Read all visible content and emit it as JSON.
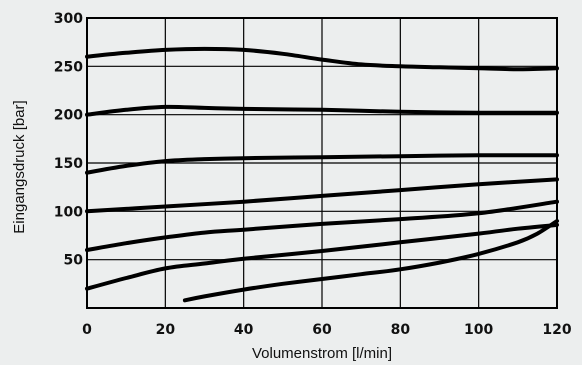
{
  "chart_data": {
    "type": "line",
    "title": "",
    "xlabel": "Volumenstrom [l/min]",
    "ylabel": "Eingangsdruck [bar]",
    "xlim": [
      0,
      120
    ],
    "ylim": [
      0,
      300
    ],
    "xticks": [
      "0",
      "20",
      "40",
      "60",
      "80",
      "100",
      "120"
    ],
    "yticks": [
      "50",
      "100",
      "150",
      "200",
      "250",
      "300"
    ],
    "grid": true,
    "legend": "none",
    "line_color": "#000000",
    "background": "#eceeee",
    "series": [
      {
        "x": [
          0,
          10,
          20,
          30,
          40,
          50,
          60,
          70,
          80,
          90,
          100,
          110,
          120
        ],
        "y": [
          260,
          264,
          267,
          268,
          267,
          263,
          257,
          252,
          250,
          249,
          248,
          247,
          248
        ]
      },
      {
        "x": [
          0,
          10,
          20,
          30,
          40,
          60,
          80,
          100,
          120
        ],
        "y": [
          200,
          205,
          208,
          207,
          206,
          205,
          203,
          202,
          202
        ]
      },
      {
        "x": [
          0,
          10,
          20,
          30,
          40,
          60,
          80,
          100,
          120
        ],
        "y": [
          140,
          147,
          152,
          154,
          155,
          156,
          157,
          158,
          158
        ]
      },
      {
        "x": [
          0,
          20,
          40,
          60,
          80,
          100,
          120
        ],
        "y": [
          100,
          105,
          110,
          116,
          122,
          128,
          133
        ]
      },
      {
        "x": [
          0,
          10,
          20,
          30,
          40,
          60,
          80,
          100,
          120
        ],
        "y": [
          60,
          67,
          73,
          78,
          81,
          87,
          92,
          98,
          110
        ]
      },
      {
        "x": [
          0,
          10,
          20,
          30,
          40,
          60,
          80,
          100,
          110,
          120
        ],
        "y": [
          20,
          31,
          41,
          46,
          51,
          59,
          68,
          77,
          82,
          86
        ]
      },
      {
        "x": [
          25,
          30,
          40,
          50,
          60,
          70,
          80,
          90,
          100,
          110,
          115,
          120
        ],
        "y": [
          8,
          12,
          19,
          25,
          30,
          35,
          40,
          47,
          56,
          68,
          77,
          90
        ]
      }
    ]
  }
}
